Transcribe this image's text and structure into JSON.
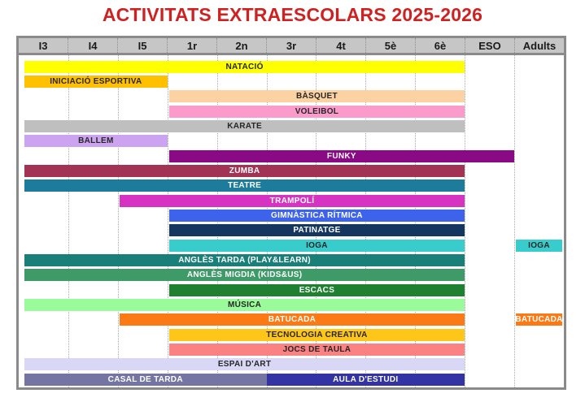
{
  "title": "ACTIVITATS EXTRAESCOLARS 2025-2026",
  "title_color": "#CE2222",
  "header_bg": "#C6C6C6",
  "border_color": "#8A8A8A",
  "dark_text": "#262626",
  "light_text": "#FFFFFF",
  "chart_data": {
    "type": "table",
    "title": "ACTIVITATS EXTRAESCOLARS 2025-2026",
    "columns": [
      "I3",
      "I4",
      "I5",
      "1r",
      "2n",
      "3r",
      "4t",
      "5è",
      "6è",
      "ESO",
      "Adults"
    ],
    "rows": [
      {
        "bars": [
          {
            "label": "NATACIÓ",
            "from": "I3",
            "to": "6è",
            "color": "#FFFF00",
            "text": "dark"
          }
        ]
      },
      {
        "bars": [
          {
            "label": "INICIACIÓ ESPORTIVA",
            "from": "I3",
            "to": "I5",
            "color": "#FFC000",
            "text": "dark"
          }
        ]
      },
      {
        "bars": [
          {
            "label": "BÀSQUET",
            "from": "1r",
            "to": "6è",
            "color": "#FCD2A2",
            "text": "dark"
          }
        ]
      },
      {
        "bars": [
          {
            "label": "VOLEIBOL",
            "from": "1r",
            "to": "6è",
            "color": "#FB9BCB",
            "text": "dark"
          }
        ]
      },
      {
        "bars": [
          {
            "label": "KARATE",
            "from": "I3",
            "to": "6è",
            "color": "#BFBFBF",
            "text": "dark"
          }
        ]
      },
      {
        "bars": [
          {
            "label": "BALLEM",
            "from": "I3",
            "to": "I5",
            "color": "#CCA3F0",
            "text": "dark"
          }
        ]
      },
      {
        "bars": [
          {
            "label": "FUNKY",
            "from": "1r",
            "to": "ESO",
            "color": "#8A0A86",
            "text": "light"
          }
        ]
      },
      {
        "bars": [
          {
            "label": "ZUMBA",
            "from": "I3",
            "to": "6è",
            "color": "#A23355",
            "text": "light"
          }
        ]
      },
      {
        "bars": [
          {
            "label": "TEATRE",
            "from": "I3",
            "to": "6è",
            "color": "#1D7C9C",
            "text": "light"
          }
        ]
      },
      {
        "bars": [
          {
            "label": "TRAMPOLÍ",
            "from": "I5",
            "to": "6è",
            "color": "#D633C2",
            "text": "light"
          }
        ]
      },
      {
        "bars": [
          {
            "label": "GIMNÀSTICA RÍTMICA",
            "from": "1r",
            "to": "6è",
            "color": "#3D63ED",
            "text": "light"
          }
        ]
      },
      {
        "bars": [
          {
            "label": "PATINATGE",
            "from": "1r",
            "to": "6è",
            "color": "#14365F",
            "text": "light"
          }
        ]
      },
      {
        "bars": [
          {
            "label": "IOGA",
            "from": "1r",
            "to": "6è",
            "color": "#38CCCC",
            "text": "dark"
          },
          {
            "label": "IOGA",
            "from": "Adults",
            "to": "Adults",
            "color": "#38CCCC",
            "text": "dark"
          }
        ]
      },
      {
        "bars": [
          {
            "label": "ANGLÈS TARDA (PLAY&LEARN)",
            "from": "I3",
            "to": "6è",
            "color": "#1A7F78",
            "text": "light"
          }
        ]
      },
      {
        "bars": [
          {
            "label": "ANGLÈS MIGDIA (KIDS&US)",
            "from": "I3",
            "to": "6è",
            "color": "#3E9B68",
            "text": "light"
          }
        ]
      },
      {
        "bars": [
          {
            "label": "ESCACS",
            "from": "1r",
            "to": "6è",
            "color": "#1E8030",
            "text": "light"
          }
        ]
      },
      {
        "bars": [
          {
            "label": "MÚSICA",
            "from": "I3",
            "to": "6è",
            "color": "#99FB99",
            "text": "dark"
          }
        ]
      },
      {
        "bars": [
          {
            "label": "BATUCADA",
            "from": "I5",
            "to": "6è",
            "color": "#FB7A15",
            "text": "light"
          },
          {
            "label": "BATUCADA",
            "from": "Adults",
            "to": "Adults",
            "color": "#FB7A15",
            "text": "light"
          }
        ]
      },
      {
        "bars": [
          {
            "label": "TECNOLOGIA CREATIVA",
            "from": "1r",
            "to": "6è",
            "color": "#FFC61A",
            "text": "dark"
          }
        ]
      },
      {
        "bars": [
          {
            "label": "JOCS DE TAULA",
            "from": "1r",
            "to": "6è",
            "color": "#FA8282",
            "text": "dark"
          }
        ]
      },
      {
        "bars": [
          {
            "label": "ESPAI D'ART",
            "from": "I3",
            "to": "6è",
            "color": "#D8D8F6",
            "text": "dark"
          }
        ]
      },
      {
        "bars": [
          {
            "label": "CASAL DE TARDA",
            "from": "I3",
            "to": "2n",
            "color": "#7575A3",
            "text": "light"
          },
          {
            "label": "AULA D'ESTUDI",
            "from": "3r",
            "to": "6è",
            "color": "#3333A3",
            "text": "light"
          }
        ]
      }
    ]
  }
}
